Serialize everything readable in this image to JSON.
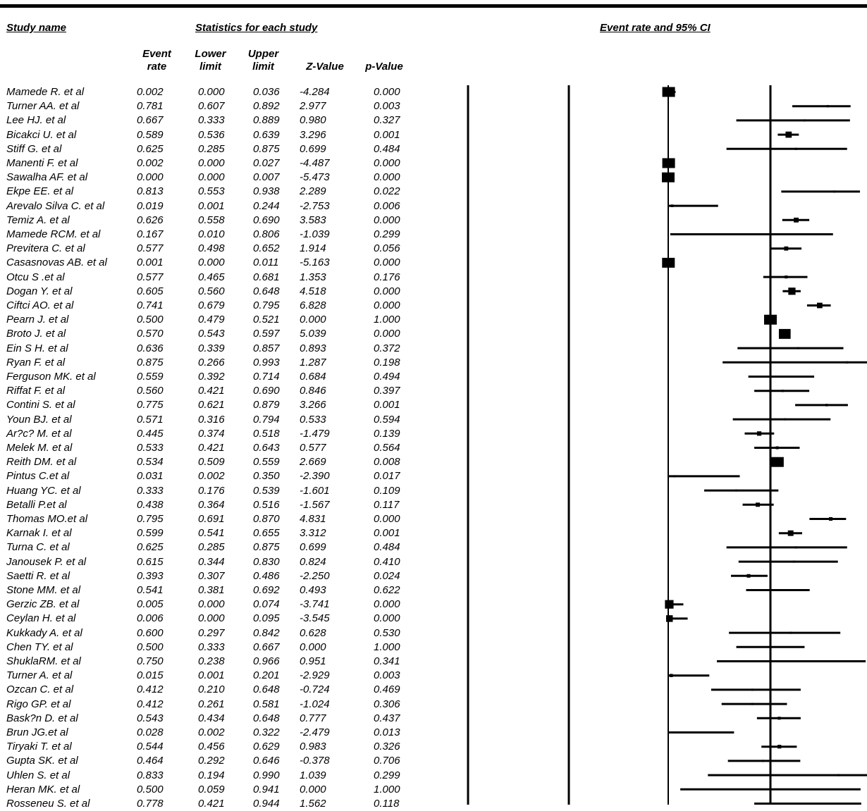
{
  "header": {
    "study_name": "Study name",
    "statistics": "Statistics for each study",
    "plot_title": "Event rate and 95% CI"
  },
  "columns": {
    "event_rate": "Event\nrate",
    "lower_limit": "Lower\nlimit",
    "upper_limit": "Upper\nlimit",
    "z_value": "Z-Value",
    "p_value": "p-Value"
  },
  "chart_data": {
    "type": "forest",
    "x_reference": 0.5,
    "studies": [
      {
        "name": "Mamede R. et al",
        "er": "0.002",
        "ll": "0.000",
        "ul": "0.036",
        "z": "-4.284",
        "p": "0.000"
      },
      {
        "name": "Turner AA. et al",
        "er": "0.781",
        "ll": "0.607",
        "ul": "0.892",
        "z": "2.977",
        "p": "0.003"
      },
      {
        "name": "Lee HJ. et al",
        "er": "0.667",
        "ll": "0.333",
        "ul": "0.889",
        "z": "0.980",
        "p": "0.327"
      },
      {
        "name": "Bicakci U. et al",
        "er": "0.589",
        "ll": "0.536",
        "ul": "0.639",
        "z": "3.296",
        "p": "0.001"
      },
      {
        "name": "Stiff G. et al",
        "er": "0.625",
        "ll": "0.285",
        "ul": "0.875",
        "z": "0.699",
        "p": "0.484"
      },
      {
        "name": "Manenti F. et al",
        "er": "0.002",
        "ll": "0.000",
        "ul": "0.027",
        "z": "-4.487",
        "p": "0.000"
      },
      {
        "name": "Sawalha AF. et al",
        "er": "0.000",
        "ll": "0.000",
        "ul": "0.007",
        "z": "-5.473",
        "p": "0.000"
      },
      {
        "name": "Ekpe EE. et al",
        "er": "0.813",
        "ll": "0.553",
        "ul": "0.938",
        "z": "2.289",
        "p": "0.022"
      },
      {
        "name": "Arevalo Silva C. et al",
        "er": "0.019",
        "ll": "0.001",
        "ul": "0.244",
        "z": "-2.753",
        "p": "0.006"
      },
      {
        "name": "Temiz A. et al",
        "er": "0.626",
        "ll": "0.558",
        "ul": "0.690",
        "z": "3.583",
        "p": "0.000"
      },
      {
        "name": "Mamede RCM. et al",
        "er": "0.167",
        "ll": "0.010",
        "ul": "0.806",
        "z": "-1.039",
        "p": "0.299"
      },
      {
        "name": "Previtera C. et al",
        "er": "0.577",
        "ll": "0.498",
        "ul": "0.652",
        "z": "1.914",
        "p": "0.056"
      },
      {
        "name": "Casasnovas AB. et al",
        "er": "0.001",
        "ll": "0.000",
        "ul": "0.011",
        "z": "-5.163",
        "p": "0.000"
      },
      {
        "name": "Otcu S .et al",
        "er": "0.577",
        "ll": "0.465",
        "ul": "0.681",
        "z": "1.353",
        "p": "0.176"
      },
      {
        "name": "Dogan Y. et al",
        "er": "0.605",
        "ll": "0.560",
        "ul": "0.648",
        "z": "4.518",
        "p": "0.000"
      },
      {
        "name": "Ciftci AO. et al",
        "er": "0.741",
        "ll": "0.679",
        "ul": "0.795",
        "z": "6.828",
        "p": "0.000"
      },
      {
        "name": "Pearn J. et al",
        "er": "0.500",
        "ll": "0.479",
        "ul": "0.521",
        "z": "0.000",
        "p": "1.000"
      },
      {
        "name": "Broto J. et al",
        "er": "0.570",
        "ll": "0.543",
        "ul": "0.597",
        "z": "5.039",
        "p": "0.000"
      },
      {
        "name": "Ein S H. et al",
        "er": "0.636",
        "ll": "0.339",
        "ul": "0.857",
        "z": "0.893",
        "p": "0.372"
      },
      {
        "name": "Ryan F. et al",
        "er": "0.875",
        "ll": "0.266",
        "ul": "0.993",
        "z": "1.287",
        "p": "0.198"
      },
      {
        "name": "Ferguson MK. et al",
        "er": "0.559",
        "ll": "0.392",
        "ul": "0.714",
        "z": "0.684",
        "p": "0.494"
      },
      {
        "name": "Riffat F. et al",
        "er": "0.560",
        "ll": "0.421",
        "ul": "0.690",
        "z": "0.846",
        "p": "0.397"
      },
      {
        "name": "Contini S.  et al",
        "er": "0.775",
        "ll": "0.621",
        "ul": "0.879",
        "z": "3.266",
        "p": "0.001"
      },
      {
        "name": "Youn BJ. et al",
        "er": "0.571",
        "ll": "0.316",
        "ul": "0.794",
        "z": "0.533",
        "p": "0.594"
      },
      {
        "name": "Ar?c? M. et al",
        "er": "0.445",
        "ll": "0.374",
        "ul": "0.518",
        "z": "-1.479",
        "p": "0.139"
      },
      {
        "name": "Melek M. et al",
        "er": "0.533",
        "ll": "0.421",
        "ul": "0.643",
        "z": "0.577",
        "p": "0.564"
      },
      {
        "name": "Reith DM. et al",
        "er": "0.534",
        "ll": "0.509",
        "ul": "0.559",
        "z": "2.669",
        "p": "0.008"
      },
      {
        "name": "Pintus C.et al",
        "er": "0.031",
        "ll": "0.002",
        "ul": "0.350",
        "z": "-2.390",
        "p": "0.017"
      },
      {
        "name": "Huang YC. et al",
        "er": "0.333",
        "ll": "0.176",
        "ul": "0.539",
        "z": "-1.601",
        "p": "0.109"
      },
      {
        "name": "Betalli P.et al",
        "er": "0.438",
        "ll": "0.364",
        "ul": "0.516",
        "z": "-1.567",
        "p": "0.117"
      },
      {
        "name": "Thomas MO.et al",
        "er": "0.795",
        "ll": "0.691",
        "ul": "0.870",
        "z": "4.831",
        "p": "0.000"
      },
      {
        "name": "Karnak I. et al",
        "er": "0.599",
        "ll": "0.541",
        "ul": "0.655",
        "z": "3.312",
        "p": "0.001"
      },
      {
        "name": "Turna C. et al",
        "er": "0.625",
        "ll": "0.285",
        "ul": "0.875",
        "z": "0.699",
        "p": "0.484"
      },
      {
        "name": "Janousek P. et al",
        "er": "0.615",
        "ll": "0.344",
        "ul": "0.830",
        "z": "0.824",
        "p": "0.410"
      },
      {
        "name": "Saetti R. et al",
        "er": "0.393",
        "ll": "0.307",
        "ul": "0.486",
        "z": "-2.250",
        "p": "0.024"
      },
      {
        "name": "Stone MM. et al",
        "er": "0.541",
        "ll": "0.381",
        "ul": "0.692",
        "z": "0.493",
        "p": "0.622"
      },
      {
        "name": "Gerzic ZB. et al",
        "er": "0.005",
        "ll": "0.000",
        "ul": "0.074",
        "z": "-3.741",
        "p": "0.000"
      },
      {
        "name": "Ceylan H. et al",
        "er": "0.006",
        "ll": "0.000",
        "ul": "0.095",
        "z": "-3.545",
        "p": "0.000"
      },
      {
        "name": "Kukkady A. et al",
        "er": "0.600",
        "ll": "0.297",
        "ul": "0.842",
        "z": "0.628",
        "p": "0.530"
      },
      {
        "name": "Chen TY. et al",
        "er": "0.500",
        "ll": "0.333",
        "ul": "0.667",
        "z": "0.000",
        "p": "1.000"
      },
      {
        "name": "ShuklaRM. et al",
        "er": "0.750",
        "ll": "0.238",
        "ul": "0.966",
        "z": "0.951",
        "p": "0.341"
      },
      {
        "name": "Turner A. et al",
        "er": "0.015",
        "ll": "0.001",
        "ul": "0.201",
        "z": "-2.929",
        "p": "0.003"
      },
      {
        "name": "Ozcan C. et al",
        "er": "0.412",
        "ll": "0.210",
        "ul": "0.648",
        "z": "-0.724",
        "p": "0.469"
      },
      {
        "name": "Rigo GP. et al",
        "er": "0.412",
        "ll": "0.261",
        "ul": "0.581",
        "z": "-1.024",
        "p": "0.306"
      },
      {
        "name": "Bask?n D. et al",
        "er": "0.543",
        "ll": "0.434",
        "ul": "0.648",
        "z": "0.777",
        "p": "0.437"
      },
      {
        "name": "Brun JG.et al",
        "er": "0.028",
        "ll": "0.002",
        "ul": "0.322",
        "z": "-2.479",
        "p": "0.013"
      },
      {
        "name": "Tiryaki T. et al",
        "er": "0.544",
        "ll": "0.456",
        "ul": "0.629",
        "z": "0.983",
        "p": "0.326"
      },
      {
        "name": "Gupta  SK. et al",
        "er": "0.464",
        "ll": "0.292",
        "ul": "0.646",
        "z": "-0.378",
        "p": "0.706"
      },
      {
        "name": "Uhlen S. et al",
        "er": "0.833",
        "ll": "0.194",
        "ul": "0.990",
        "z": "1.039",
        "p": "0.299"
      },
      {
        "name": "Heran  MK. et al",
        "er": "0.500",
        "ll": "0.059",
        "ul": "0.941",
        "z": "0.000",
        "p": "1.000"
      },
      {
        "name": "Rosseneu S. et al",
        "er": "0.778",
        "ll": "0.421",
        "ul": "0.944",
        "z": "1.562",
        "p": "0.118"
      }
    ]
  }
}
